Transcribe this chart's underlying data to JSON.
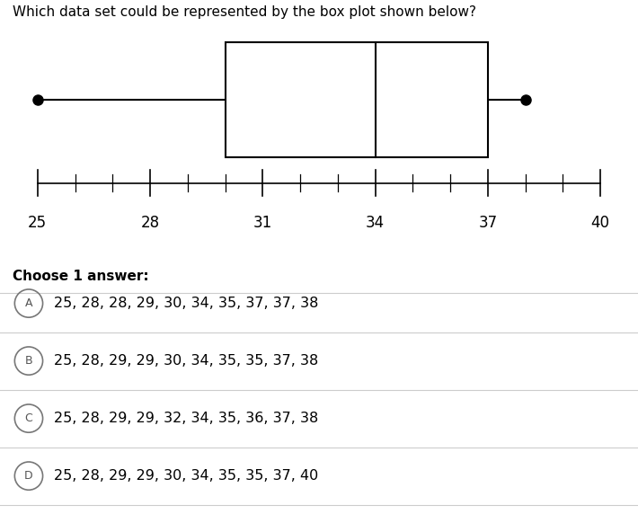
{
  "question": "Which data set could be represented by the box plot shown below?",
  "boxplot": {
    "min": 25,
    "q1": 30,
    "median": 34,
    "q3": 37,
    "max": 38
  },
  "axis": {
    "xmin": 24,
    "xmax": 41,
    "ticks": [
      25,
      28,
      31,
      34,
      37,
      40
    ],
    "tick_fontsize": 12
  },
  "choices": [
    {
      "label": "A",
      "text": "25, 28, 28, 29, 30, 34, 35, 37, 37, 38"
    },
    {
      "label": "B",
      "text": "25, 28, 29, 29, 30, 34, 35, 35, 37, 38"
    },
    {
      "label": "C",
      "text": "25, 28, 29, 29, 32, 34, 35, 36, 37, 38"
    },
    {
      "label": "D",
      "text": "25, 28, 29, 29, 30, 34, 35, 35, 37, 40"
    }
  ],
  "choose_text": "Choose 1 answer:",
  "bg_color": "#ffffff",
  "text_color": "#000000",
  "box_color": "#ffffff",
  "box_edge_color": "#000000",
  "whisker_color": "#000000",
  "dot_color": "#000000",
  "dot_size": 8,
  "question_fontsize": 11,
  "choice_fontsize": 11.5,
  "choose_fontsize": 11
}
